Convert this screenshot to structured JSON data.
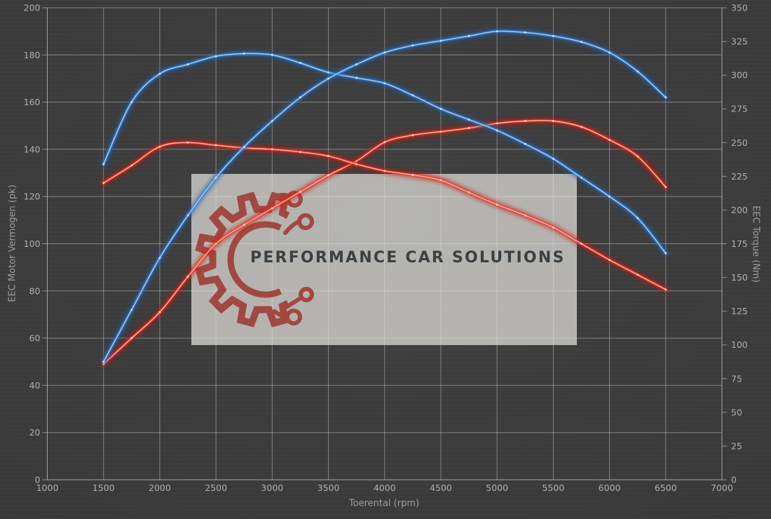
{
  "chart_data": {
    "type": "line",
    "xlabel": "Toerental (rpm)",
    "ylabel_left": "EEC Motor Vermogen (pk)",
    "ylabel_right": "EEC Torque (Nm)",
    "x_range": [
      1000,
      7000
    ],
    "x_ticks": [
      1000,
      1500,
      2000,
      2500,
      3000,
      3500,
      4000,
      4500,
      5000,
      5500,
      6000,
      6500,
      7000
    ],
    "y_left_range": [
      0,
      200
    ],
    "y_left_ticks": [
      0,
      20,
      40,
      60,
      80,
      100,
      120,
      140,
      160,
      180,
      200
    ],
    "y_right_range": [
      0,
      350
    ],
    "y_right_ticks": [
      0,
      25,
      50,
      75,
      100,
      125,
      150,
      175,
      200,
      225,
      250,
      275,
      300,
      325,
      350
    ],
    "grid": true,
    "legend": "none",
    "rpm": [
      1500,
      1750,
      2000,
      2250,
      2500,
      2750,
      3000,
      3250,
      3500,
      3750,
      4000,
      4250,
      4500,
      4750,
      5000,
      5250,
      5500,
      5750,
      6000,
      6250,
      6500
    ],
    "series": [
      {
        "name": "vermogen-stock-pk",
        "axis": "left",
        "color_key": "stock",
        "values": [
          49,
          60,
          71,
          86,
          100,
          108,
          115,
          122,
          129,
          135,
          143,
          146,
          147.5,
          149,
          151,
          152,
          152,
          149.5,
          144,
          137,
          124
        ]
      },
      {
        "name": "torque-stock-nm",
        "axis": "right",
        "color_key": "stock",
        "values": [
          220,
          233,
          247,
          250,
          248,
          246,
          245,
          243,
          240,
          234,
          229,
          226,
          222,
          213,
          204,
          196,
          187,
          175,
          163,
          152,
          141
        ]
      },
      {
        "name": "torque-tuned-nm",
        "axis": "right",
        "color_key": "tuned",
        "values": [
          234,
          280,
          301,
          308,
          314,
          316,
          315,
          309,
          302,
          298,
          294,
          285,
          275,
          267,
          259,
          249,
          238,
          224,
          210,
          194,
          168
        ]
      },
      {
        "name": "vermogen-tuned-pk",
        "axis": "left",
        "color_key": "tuned",
        "values": [
          50,
          72,
          94,
          112,
          128,
          141,
          152,
          162,
          170,
          176,
          181,
          184,
          186,
          188,
          190,
          189.5,
          188,
          185.5,
          181,
          173,
          162
        ]
      }
    ]
  },
  "watermark": {
    "text": "PERFORMANCE CAR SOLUTIONS"
  },
  "colors": {
    "background": "#3a3a3a",
    "grid": "#c8c8c8",
    "spine": "#cfcfcf",
    "tick_text": "#b0b0b0",
    "axis_title_text": "#9d9d9d",
    "tuned_glow": "#1c5fb0",
    "tuned_mid": "#3b84cf",
    "tuned_core": "#a6cdf4",
    "tuned_dot": "#d3e7fb",
    "stock_glow": "#cc1405",
    "stock_mid": "#e63a2b",
    "stock_core": "#ffb3aa",
    "stock_dot": "#ffd9d2",
    "watermark_logo": "#a24840",
    "watermark_text": "#3b4043"
  }
}
